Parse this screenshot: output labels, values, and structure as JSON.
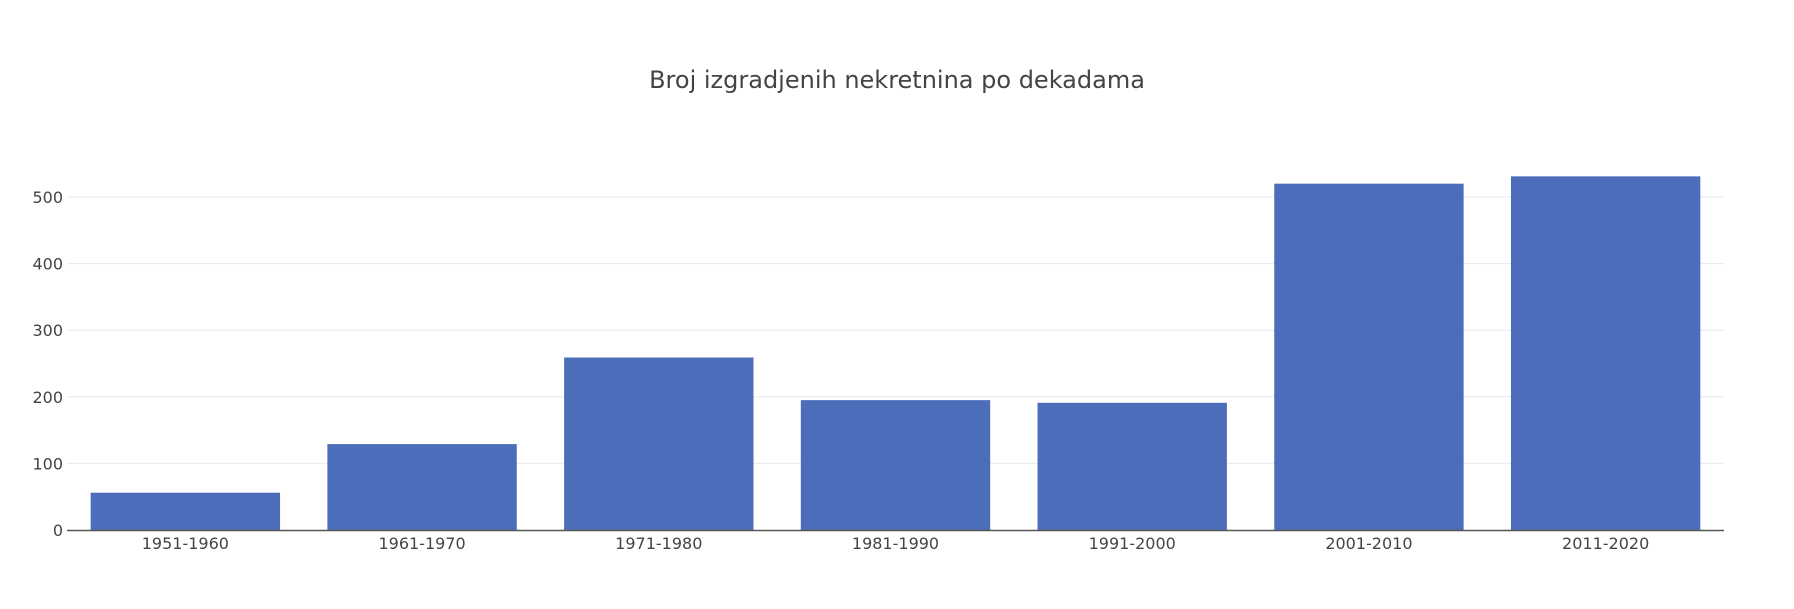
{
  "chart_data": {
    "type": "bar",
    "title": "Broj izgradjenih nekretnina po dekadama",
    "xlabel": "",
    "ylabel": "",
    "categories": [
      "1951-1960",
      "1961-1970",
      "1971-1980",
      "1981-1990",
      "1991-2000",
      "2001-2010",
      "2011-2020"
    ],
    "values": [
      56,
      129,
      259,
      195,
      191,
      520,
      531
    ],
    "ylim": [
      0,
      560
    ],
    "yticks": [
      0,
      100,
      200,
      300,
      400,
      500
    ],
    "grid": true,
    "bar_color": "#4c6eba",
    "grid_color": "#e8e8ee",
    "axis_color": "#555555"
  }
}
